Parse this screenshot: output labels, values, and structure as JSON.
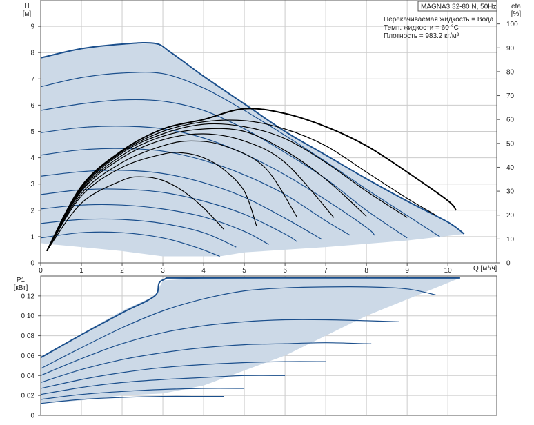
{
  "title": "MAGNA3 32-80 N, 50Hz",
  "info_lines": [
    "Перекачиваемая жидкость = Вода",
    "Темп. жидкости = 60 °C",
    "Плотность = 983.2 кг/м³"
  ],
  "colors": {
    "fill": "#ccd9e7",
    "curve": "#1b4f8c",
    "eta": "#000000",
    "grid": "#cccccc",
    "axis": "#555555"
  },
  "chart_data": [
    {
      "type": "line",
      "xlabel": "Q [м³/ч]",
      "ylabel_main": "H",
      "ylabel_unit": "[м]",
      "y2label_main": "eta",
      "y2label_unit": "[%]",
      "xlim": [
        0,
        11.2
      ],
      "ylim": [
        0,
        10
      ],
      "y2lim": [
        0,
        110
      ],
      "xticks": [
        "0",
        "1",
        "2",
        "3",
        "4",
        "5",
        "6",
        "7",
        "8",
        "9",
        "10"
      ],
      "yticks": [
        "0",
        "1",
        "2",
        "3",
        "4",
        "5",
        "6",
        "7",
        "8",
        "9"
      ],
      "y2ticks": [
        "0",
        "10",
        "20",
        "30",
        "40",
        "50",
        "60",
        "70",
        "80",
        "90",
        "100"
      ],
      "grid": true,
      "envelope": [
        [
          0,
          7.8
        ],
        [
          1,
          8.15
        ],
        [
          2,
          8.32
        ],
        [
          2.8,
          8.35
        ],
        [
          3.2,
          8.0
        ],
        [
          4,
          7.1
        ],
        [
          5,
          6.05
        ],
        [
          6,
          5.0
        ],
        [
          7,
          4.1
        ],
        [
          8,
          3.2
        ],
        [
          9,
          2.35
        ],
        [
          10,
          1.55
        ],
        [
          10.4,
          1.1
        ],
        [
          9,
          0.85
        ],
        [
          7,
          0.6
        ],
        [
          5,
          0.4
        ],
        [
          4.4,
          0.25
        ],
        [
          3,
          0.25
        ],
        [
          2,
          0.45
        ],
        [
          1,
          0.6
        ],
        [
          0.3,
          0.7
        ],
        [
          0,
          0.75
        ]
      ],
      "pump_curves": [
        [
          [
            0,
            7.8
          ],
          [
            1,
            8.15
          ],
          [
            2,
            8.32
          ],
          [
            2.8,
            8.35
          ],
          [
            3.2,
            8.0
          ],
          [
            4,
            7.1
          ],
          [
            5,
            6.05
          ],
          [
            6,
            5.0
          ],
          [
            7,
            4.1
          ],
          [
            8,
            3.2
          ],
          [
            9,
            2.35
          ],
          [
            10,
            1.55
          ],
          [
            10.4,
            1.1
          ]
        ],
        [
          [
            0,
            6.7
          ],
          [
            1,
            7.05
          ],
          [
            2,
            7.22
          ],
          [
            3,
            7.2
          ],
          [
            4,
            6.65
          ],
          [
            5,
            5.8
          ],
          [
            6,
            4.85
          ],
          [
            7,
            3.85
          ],
          [
            8,
            2.8
          ],
          [
            9,
            1.8
          ],
          [
            9.8,
            1.0
          ]
        ],
        [
          [
            0,
            5.8
          ],
          [
            1,
            6.05
          ],
          [
            2,
            6.2
          ],
          [
            3,
            6.15
          ],
          [
            4,
            5.8
          ],
          [
            5,
            5.1
          ],
          [
            6,
            4.2
          ],
          [
            7,
            3.2
          ],
          [
            8,
            2.0
          ],
          [
            9,
            0.95
          ]
        ],
        [
          [
            0,
            4.95
          ],
          [
            1,
            5.15
          ],
          [
            2,
            5.2
          ],
          [
            3,
            5.1
          ],
          [
            4,
            4.75
          ],
          [
            5,
            4.15
          ],
          [
            6,
            3.35
          ],
          [
            7,
            2.4
          ],
          [
            8,
            1.35
          ],
          [
            8.2,
            1.05
          ]
        ],
        [
          [
            0,
            4.1
          ],
          [
            1,
            4.3
          ],
          [
            2,
            4.35
          ],
          [
            3,
            4.25
          ],
          [
            4,
            3.9
          ],
          [
            5,
            3.35
          ],
          [
            6,
            2.6
          ],
          [
            7,
            1.6
          ],
          [
            7.6,
            1.05
          ]
        ],
        [
          [
            0,
            3.3
          ],
          [
            1,
            3.47
          ],
          [
            2,
            3.52
          ],
          [
            3,
            3.4
          ],
          [
            4,
            3.05
          ],
          [
            5,
            2.5
          ],
          [
            6,
            1.7
          ],
          [
            6.9,
            0.9
          ]
        ],
        [
          [
            0,
            2.6
          ],
          [
            1,
            2.78
          ],
          [
            2,
            2.8
          ],
          [
            3,
            2.68
          ],
          [
            4,
            2.35
          ],
          [
            5,
            1.85
          ],
          [
            6,
            1.1
          ],
          [
            6.3,
            0.8
          ]
        ],
        [
          [
            0,
            2.05
          ],
          [
            1,
            2.2
          ],
          [
            2,
            2.2
          ],
          [
            3,
            2.05
          ],
          [
            4,
            1.75
          ],
          [
            5,
            1.2
          ],
          [
            5.6,
            0.7
          ]
        ],
        [
          [
            0,
            1.5
          ],
          [
            1,
            1.65
          ],
          [
            2,
            1.65
          ],
          [
            3,
            1.5
          ],
          [
            4,
            1.15
          ],
          [
            4.8,
            0.6
          ]
        ],
        [
          [
            0,
            0.95
          ],
          [
            1,
            1.15
          ],
          [
            2,
            1.15
          ],
          [
            3,
            0.95
          ],
          [
            3.8,
            0.6
          ],
          [
            4.4,
            0.25
          ]
        ]
      ],
      "eta_curves": [
        [
          [
            0.15,
            5
          ],
          [
            1,
            25
          ],
          [
            2,
            34.5
          ],
          [
            2.5,
            36
          ],
          [
            3,
            34.5
          ],
          [
            3.5,
            30
          ],
          [
            4,
            23
          ],
          [
            4.5,
            14
          ]
        ],
        [
          [
            0.15,
            5
          ],
          [
            1,
            28
          ],
          [
            2,
            40
          ],
          [
            3,
            45.5
          ],
          [
            3.5,
            46
          ],
          [
            4,
            44
          ],
          [
            4.5,
            39
          ],
          [
            5,
            30
          ],
          [
            5.3,
            15.5
          ]
        ],
        [
          [
            0.15,
            5
          ],
          [
            1,
            29
          ],
          [
            2,
            42
          ],
          [
            3,
            49
          ],
          [
            3.7,
            51
          ],
          [
            4.5,
            49
          ],
          [
            5.5,
            40
          ],
          [
            6.3,
            19
          ]
        ],
        [
          [
            0.15,
            5
          ],
          [
            1,
            30
          ],
          [
            2,
            44
          ],
          [
            3,
            51.5
          ],
          [
            4,
            54
          ],
          [
            5,
            51
          ],
          [
            6,
            42
          ],
          [
            7.2,
            19
          ]
        ],
        [
          [
            0.15,
            5
          ],
          [
            1,
            30.5
          ],
          [
            2,
            45
          ],
          [
            3,
            53
          ],
          [
            4,
            56
          ],
          [
            5,
            55
          ],
          [
            6,
            47
          ],
          [
            7,
            35
          ],
          [
            8,
            19.5
          ]
        ],
        [
          [
            0.15,
            5
          ],
          [
            1,
            31
          ],
          [
            2,
            46
          ],
          [
            3,
            54
          ],
          [
            4,
            58
          ],
          [
            5,
            57
          ],
          [
            6,
            52
          ],
          [
            7,
            42
          ],
          [
            8,
            30
          ],
          [
            9,
            19
          ]
        ],
        [
          [
            0.15,
            5
          ],
          [
            1,
            31.5
          ],
          [
            2,
            46.5
          ],
          [
            3,
            55
          ],
          [
            4,
            59
          ],
          [
            5,
            59.5
          ],
          [
            6,
            56
          ],
          [
            7,
            49
          ],
          [
            8,
            38
          ],
          [
            9,
            27
          ],
          [
            9.7,
            20
          ]
        ],
        [
          [
            0.15,
            5
          ],
          [
            1,
            32
          ],
          [
            2,
            47
          ],
          [
            3,
            56
          ],
          [
            4,
            60
          ],
          [
            5,
            64.5
          ],
          [
            6,
            62.5
          ],
          [
            7,
            57
          ],
          [
            8,
            49
          ],
          [
            9,
            38
          ],
          [
            10,
            26
          ],
          [
            10.2,
            22
          ]
        ]
      ]
    },
    {
      "type": "line",
      "xlabel": "",
      "ylabel_main": "P1",
      "ylabel_unit": "[кВт]",
      "xlim": [
        0,
        11.2
      ],
      "ylim": [
        0,
        0.14
      ],
      "yticks": [
        "0",
        "0,02",
        "0,04",
        "0,06",
        "0,08",
        "0,10",
        "0,12"
      ],
      "grid": true,
      "envelope": [
        [
          0,
          0.058
        ],
        [
          1,
          0.082
        ],
        [
          2,
          0.105
        ],
        [
          2.8,
          0.12
        ],
        [
          3,
          0.1355
        ],
        [
          4,
          0.138
        ],
        [
          6,
          0.138
        ],
        [
          8,
          0.138
        ],
        [
          10,
          0.138
        ],
        [
          10.3,
          0.138
        ],
        [
          8,
          0.1
        ],
        [
          6,
          0.06
        ],
        [
          4,
          0.03
        ],
        [
          3,
          0.022
        ],
        [
          2,
          0.02
        ],
        [
          1,
          0.015
        ],
        [
          0,
          0.012
        ]
      ],
      "power_curves": [
        [
          [
            0,
            0.058
          ],
          [
            1,
            0.081
          ],
          [
            2,
            0.103
          ],
          [
            2.8,
            0.12
          ],
          [
            3,
            0.136
          ],
          [
            4,
            0.138
          ],
          [
            10.3,
            0.138
          ]
        ],
        [
          [
            0,
            0.047
          ],
          [
            1,
            0.068
          ],
          [
            2,
            0.088
          ],
          [
            3,
            0.105
          ],
          [
            4,
            0.117
          ],
          [
            5,
            0.125
          ],
          [
            6,
            0.128
          ],
          [
            7,
            0.129
          ],
          [
            8,
            0.129
          ],
          [
            9,
            0.127
          ],
          [
            9.7,
            0.121
          ]
        ],
        [
          [
            0,
            0.04
          ],
          [
            1,
            0.057
          ],
          [
            2,
            0.072
          ],
          [
            3,
            0.083
          ],
          [
            4,
            0.09
          ],
          [
            5,
            0.094
          ],
          [
            6,
            0.096
          ],
          [
            7,
            0.096
          ],
          [
            8,
            0.095
          ],
          [
            8.8,
            0.094
          ]
        ],
        [
          [
            0,
            0.033
          ],
          [
            1,
            0.046
          ],
          [
            2,
            0.056
          ],
          [
            3,
            0.063
          ],
          [
            4,
            0.068
          ],
          [
            5,
            0.071
          ],
          [
            6,
            0.072
          ],
          [
            7,
            0.073
          ],
          [
            8,
            0.072
          ],
          [
            8.1,
            0.072
          ]
        ],
        [
          [
            0,
            0.027
          ],
          [
            1,
            0.036
          ],
          [
            2,
            0.043
          ],
          [
            3,
            0.048
          ],
          [
            4,
            0.051
          ],
          [
            5,
            0.053
          ],
          [
            6,
            0.054
          ],
          [
            7,
            0.054
          ]
        ],
        [
          [
            0,
            0.021
          ],
          [
            1,
            0.028
          ],
          [
            2,
            0.033
          ],
          [
            3,
            0.036
          ],
          [
            4,
            0.038
          ],
          [
            5,
            0.04
          ],
          [
            6,
            0.04
          ]
        ],
        [
          [
            0,
            0.016
          ],
          [
            1,
            0.021
          ],
          [
            2,
            0.024
          ],
          [
            3,
            0.026
          ],
          [
            4,
            0.027
          ],
          [
            5,
            0.027
          ]
        ],
        [
          [
            0,
            0.012
          ],
          [
            1,
            0.016
          ],
          [
            2,
            0.018
          ],
          [
            3,
            0.019
          ],
          [
            4,
            0.019
          ],
          [
            4.5,
            0.019
          ]
        ]
      ]
    }
  ]
}
